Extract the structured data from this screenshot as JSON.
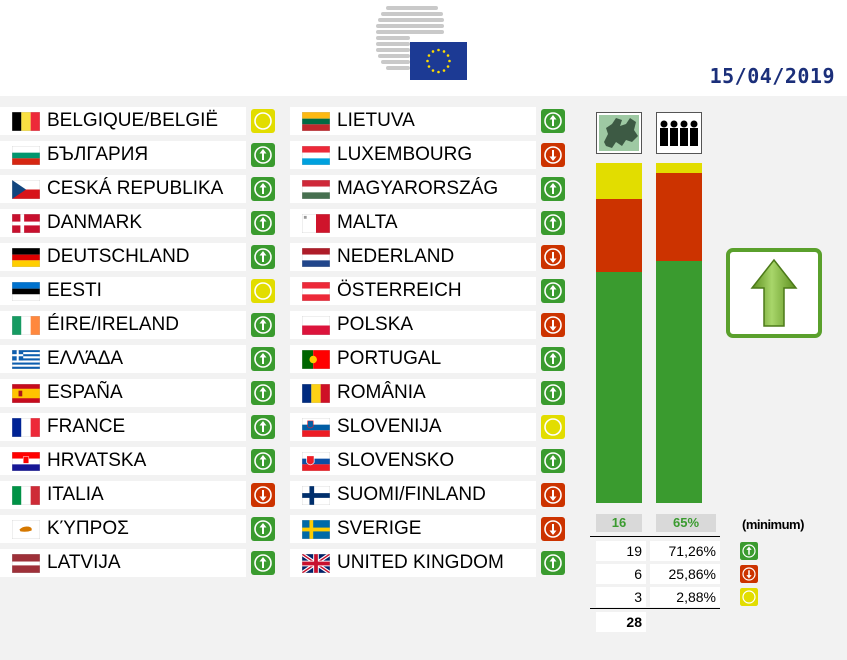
{
  "header": {
    "date": "15/04/2019"
  },
  "colors": {
    "favour": "#3a9b2f",
    "against": "#cc3300",
    "abstain": "#e2dd00",
    "date": "#1b2f7a"
  },
  "icons": {
    "favour": "arrow-up-icon",
    "against": "arrow-down-icon",
    "abstain": "circle-icon"
  },
  "countries": [
    {
      "name": "BELGIQUE/BELGIË",
      "flag": "be",
      "vote": "abstain"
    },
    {
      "name": "БЪЛГАРИЯ",
      "flag": "bg",
      "vote": "favour"
    },
    {
      "name": "CESKÁ REPUBLIKA",
      "flag": "cz",
      "vote": "favour"
    },
    {
      "name": "DANMARK",
      "flag": "dk",
      "vote": "favour"
    },
    {
      "name": "DEUTSCHLAND",
      "flag": "de",
      "vote": "favour"
    },
    {
      "name": "EESTI",
      "flag": "ee",
      "vote": "abstain"
    },
    {
      "name": "ÉIRE/IRELAND",
      "flag": "ie",
      "vote": "favour"
    },
    {
      "name": "ΕΛΛΆΔΑ",
      "flag": "gr",
      "vote": "favour"
    },
    {
      "name": "ESPAÑA",
      "flag": "es",
      "vote": "favour"
    },
    {
      "name": "FRANCE",
      "flag": "fr",
      "vote": "favour"
    },
    {
      "name": "HRVATSKA",
      "flag": "hr",
      "vote": "favour"
    },
    {
      "name": "ITALIA",
      "flag": "it",
      "vote": "against"
    },
    {
      "name": "ΚΎΠΡΟΣ",
      "flag": "cy",
      "vote": "favour"
    },
    {
      "name": "LATVIJA",
      "flag": "lv",
      "vote": "favour"
    },
    {
      "name": "LIETUVA",
      "flag": "lt",
      "vote": "favour"
    },
    {
      "name": "LUXEMBOURG",
      "flag": "lu",
      "vote": "against"
    },
    {
      "name": "MAGYARORSZÁG",
      "flag": "hu",
      "vote": "favour"
    },
    {
      "name": "MALTA",
      "flag": "mt",
      "vote": "favour"
    },
    {
      "name": "NEDERLAND",
      "flag": "nl",
      "vote": "against"
    },
    {
      "name": "ÖSTERREICH",
      "flag": "at",
      "vote": "favour"
    },
    {
      "name": "POLSKA",
      "flag": "pl",
      "vote": "against"
    },
    {
      "name": "PORTUGAL",
      "flag": "pt",
      "vote": "favour"
    },
    {
      "name": "ROMÂNIA",
      "flag": "ro",
      "vote": "favour"
    },
    {
      "name": "SLOVENIJA",
      "flag": "si",
      "vote": "abstain"
    },
    {
      "name": "SLOVENSKO",
      "flag": "sk",
      "vote": "favour"
    },
    {
      "name": "SUOMI/FINLAND",
      "flag": "fi",
      "vote": "against"
    },
    {
      "name": "SVERIGE",
      "flag": "se",
      "vote": "against"
    },
    {
      "name": "UNITED KINGDOM",
      "flag": "gb",
      "vote": "favour"
    }
  ],
  "chart_data": {
    "type": "bar",
    "stacked": true,
    "categories": [
      "member-states",
      "population"
    ],
    "series": [
      {
        "vote": "favour",
        "color": "#3a9b2f",
        "values": [
          19,
          71.26
        ]
      },
      {
        "vote": "against",
        "color": "#cc3300",
        "values": [
          6,
          25.86
        ]
      },
      {
        "vote": "abstain",
        "color": "#e2dd00",
        "values": [
          3,
          2.88
        ]
      }
    ],
    "totals": [
      28,
      100
    ],
    "thresholds": [
      "16",
      "65%"
    ],
    "threshold_note": "(minimum)"
  },
  "results": {
    "rows": [
      {
        "vote": "favour",
        "count": "19",
        "pct": "71,26%"
      },
      {
        "vote": "against",
        "count": "6",
        "pct": "25,86%"
      },
      {
        "vote": "abstain",
        "count": "3",
        "pct": "2,88%"
      }
    ],
    "total": "28",
    "outcome": "adopted"
  }
}
